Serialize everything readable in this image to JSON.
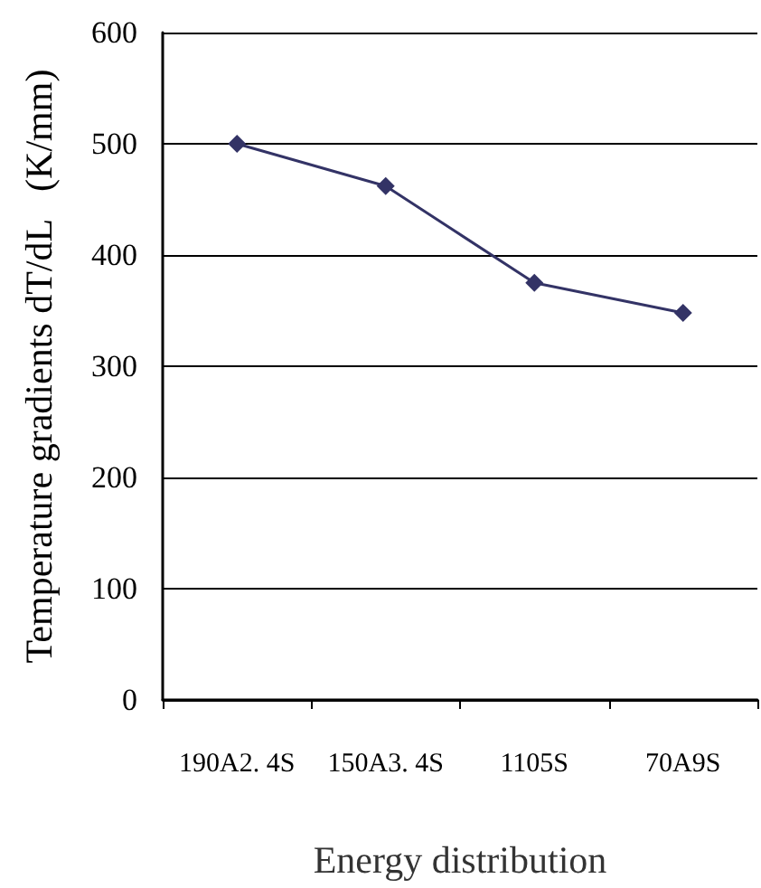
{
  "chart_data": {
    "type": "line",
    "xlabel": "Energy distribution",
    "ylabel": "Temperature gradients dT/dL   (K/mm)",
    "categories": [
      "190A2. 4S",
      "150A3. 4S",
      "1105S",
      "70A9S"
    ],
    "series": [
      {
        "color": "#333366",
        "values": [
          500,
          462,
          375,
          348
        ]
      }
    ],
    "ylim": [
      0,
      600
    ],
    "yticks": [
      0,
      100,
      200,
      300,
      400,
      500,
      600
    ],
    "grid": "y",
    "marker": "diamond",
    "line_style": "solid"
  }
}
